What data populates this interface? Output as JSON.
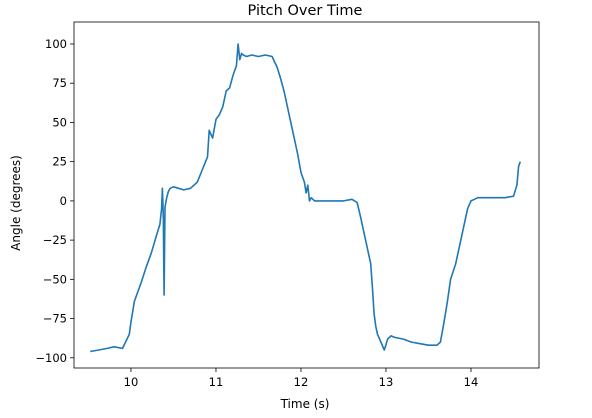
{
  "chart_data": {
    "type": "line",
    "title": "Pitch Over Time",
    "xlabel": "Time (s)",
    "ylabel": "Angle (degrees)",
    "xlim": [
      9.33,
      14.8
    ],
    "ylim": [
      -106.5,
      114
    ],
    "xticks": [
      10,
      11,
      12,
      13,
      14
    ],
    "xtick_labels": [
      "10",
      "11",
      "12",
      "13",
      "14"
    ],
    "yticks": [
      -100,
      -75,
      -50,
      -25,
      0,
      25,
      50,
      75,
      100
    ],
    "ytick_labels": [
      "−100",
      "−75",
      "−50",
      "−25",
      "0",
      "25",
      "50",
      "75",
      "100"
    ],
    "grid": false,
    "line_color": "#1f77b4",
    "series": [
      {
        "name": "Pitch",
        "x": [
          9.52,
          9.62,
          9.72,
          9.8,
          9.9,
          9.98,
          10.0,
          10.04,
          10.08,
          10.12,
          10.18,
          10.24,
          10.3,
          10.34,
          10.36,
          10.37,
          10.38,
          10.39,
          10.4,
          10.42,
          10.44,
          10.46,
          10.5,
          10.56,
          10.62,
          10.7,
          10.78,
          10.84,
          10.9,
          10.92,
          10.96,
          11.0,
          11.04,
          11.08,
          11.12,
          11.16,
          11.2,
          11.24,
          11.26,
          11.28,
          11.3,
          11.32,
          11.36,
          11.42,
          11.5,
          11.58,
          11.66,
          11.72,
          11.76,
          11.8,
          11.84,
          11.88,
          11.92,
          11.96,
          12.0,
          12.04,
          12.06,
          12.08,
          12.1,
          12.12,
          12.14,
          12.16,
          12.2,
          12.3,
          12.4,
          12.5,
          12.6,
          12.66,
          12.7,
          12.74,
          12.78,
          12.82,
          12.84,
          12.86,
          12.88,
          12.9,
          12.94,
          12.98,
          13.02,
          13.06,
          13.1,
          13.2,
          13.3,
          13.4,
          13.5,
          13.6,
          13.64,
          13.68,
          13.72,
          13.76,
          13.82,
          13.86,
          13.9,
          13.94,
          13.96,
          14.0,
          14.04,
          14.08,
          14.2,
          14.3,
          14.4,
          14.5,
          14.54,
          14.56,
          14.58
        ],
        "y": [
          -96,
          -95,
          -94,
          -93,
          -94,
          -85,
          -77,
          -64,
          -58,
          -52,
          -42,
          -33,
          -22,
          -15,
          -5,
          8,
          -10,
          -60,
          -4,
          2,
          6,
          8,
          9,
          8,
          7,
          8,
          12,
          20,
          28,
          45,
          40,
          52,
          55,
          60,
          70,
          72,
          80,
          86,
          100,
          90,
          94,
          93,
          92,
          93,
          92,
          93,
          92,
          85,
          78,
          70,
          60,
          50,
          40,
          30,
          18,
          12,
          5,
          10,
          0,
          2,
          1,
          0,
          0,
          0,
          0,
          0,
          1,
          -1,
          -10,
          -20,
          -30,
          -40,
          -55,
          -72,
          -80,
          -85,
          -90,
          -95,
          -88,
          -86,
          -87,
          -88,
          -90,
          -91,
          -92,
          -92,
          -90,
          -78,
          -65,
          -50,
          -40,
          -30,
          -20,
          -10,
          -5,
          0,
          1,
          2,
          2,
          2,
          2,
          3,
          10,
          22,
          25
        ]
      }
    ]
  }
}
